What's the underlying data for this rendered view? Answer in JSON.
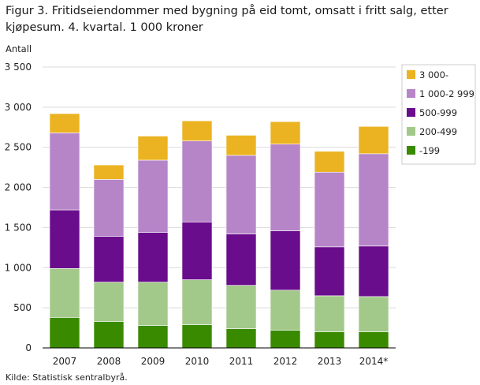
{
  "figure": {
    "title": "Figur 3. Fritidseiendommer med bygning på eid tomt, omsatt i fritt salg, etter kjøpesum. 4. kvartal. 1 000 kroner",
    "source": "Kilde: Statistisk sentralbyrå."
  },
  "chart_data": {
    "type": "bar",
    "stacked": true,
    "title": "Figur 3. Fritidseiendommer med bygning på eid tomt, omsatt i fritt salg, etter kjøpesum. 4. kvartal. 1 000 kroner",
    "ylabel": "Antall",
    "xlabel": "",
    "ylim": [
      0,
      3500
    ],
    "yticks": [
      0,
      500,
      1000,
      1500,
      2000,
      2500,
      3000,
      3500
    ],
    "ytick_labels": [
      "0",
      "500",
      "1 000",
      "1 500",
      "2 000",
      "2 500",
      "3 000",
      "3 500"
    ],
    "grid": true,
    "legend_position": "right",
    "categories": [
      "2007",
      "2008",
      "2009",
      "2010",
      "2011",
      "2012",
      "2013",
      "2014*"
    ],
    "series": [
      {
        "name": "-199",
        "color": "#3a8a00",
        "values": [
          380,
          330,
          280,
          290,
          240,
          220,
          200,
          200
        ]
      },
      {
        "name": "200-499",
        "color": "#a3c98a",
        "values": [
          610,
          490,
          540,
          560,
          540,
          500,
          450,
          440
        ]
      },
      {
        "name": "500-999",
        "color": "#6a0d8c",
        "values": [
          730,
          570,
          620,
          720,
          640,
          740,
          610,
          630
        ]
      },
      {
        "name": "1 000-2 999",
        "color": "#b685c8",
        "values": [
          960,
          710,
          900,
          1010,
          980,
          1080,
          930,
          1150
        ]
      },
      {
        "name": "3 000-",
        "color": "#ebb322",
        "values": [
          240,
          180,
          300,
          250,
          250,
          280,
          260,
          340
        ]
      }
    ]
  }
}
